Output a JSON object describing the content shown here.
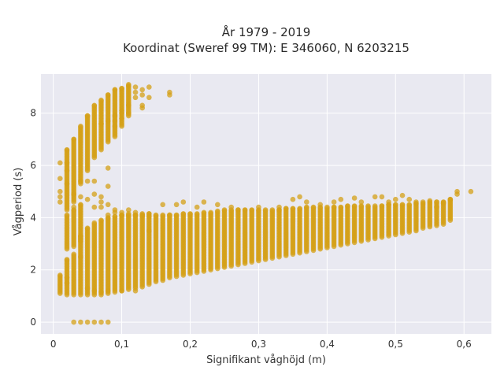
{
  "chart_data": {
    "type": "scatter",
    "title": [
      "År 1979 - 2019",
      "Koordinat (Sweref 99 TM): E 346060, N 6203215"
    ],
    "xlabel": "Signifikant våghöjd (m)",
    "ylabel": "Vågperiod (s)",
    "xlim": [
      -0.018,
      0.64
    ],
    "ylim": [
      -0.45,
      9.5
    ],
    "xticks": [
      0,
      0.1,
      0.2,
      0.3,
      0.4,
      0.5,
      0.6
    ],
    "xtick_labels": [
      "0",
      "0,1",
      "0,2",
      "0,3",
      "0,4",
      "0,5",
      "0,6"
    ],
    "yticks": [
      0,
      2,
      4,
      6,
      8
    ],
    "ytick_labels": [
      "0",
      "2",
      "4",
      "6",
      "8"
    ],
    "grid": true,
    "background_color": "#e9e9f1",
    "marker_color": "#d4a017",
    "x_step": 0.01,
    "bands": [
      {
        "name": "main",
        "x": [
          0.01,
          0.02,
          0.03,
          0.04,
          0.05,
          0.06,
          0.07,
          0.08,
          0.09,
          0.1,
          0.11,
          0.12,
          0.13,
          0.14,
          0.15,
          0.16,
          0.17,
          0.18,
          0.19,
          0.2,
          0.21,
          0.22,
          0.23,
          0.24,
          0.25,
          0.26,
          0.27,
          0.28,
          0.29,
          0.3,
          0.31,
          0.32,
          0.33,
          0.34,
          0.35,
          0.36,
          0.37,
          0.38,
          0.39,
          0.4,
          0.41,
          0.42,
          0.43,
          0.44,
          0.45,
          0.46,
          0.47,
          0.48,
          0.49,
          0.5,
          0.51,
          0.52,
          0.53,
          0.54,
          0.55,
          0.56,
          0.57,
          0.58
        ],
        "ymin": [
          1.1,
          1.05,
          1.05,
          1.05,
          1.05,
          1.05,
          1.05,
          1.1,
          1.15,
          1.2,
          1.25,
          1.3,
          1.35,
          1.45,
          1.55,
          1.6,
          1.7,
          1.75,
          1.8,
          1.85,
          1.9,
          1.95,
          2.0,
          2.05,
          2.1,
          2.15,
          2.2,
          2.25,
          2.3,
          2.35,
          2.4,
          2.45,
          2.5,
          2.55,
          2.6,
          2.65,
          2.7,
          2.75,
          2.8,
          2.85,
          2.9,
          2.95,
          3.0,
          3.05,
          3.1,
          3.15,
          3.2,
          3.25,
          3.3,
          3.35,
          3.4,
          3.45,
          3.5,
          3.6,
          3.65,
          3.7,
          3.75,
          3.9
        ],
        "ymax": [
          1.8,
          2.4,
          2.6,
          3.3,
          3.6,
          3.8,
          3.9,
          4.0,
          4.05,
          4.1,
          4.1,
          4.1,
          4.15,
          4.15,
          4.1,
          4.1,
          4.1,
          4.1,
          4.15,
          4.15,
          4.15,
          4.2,
          4.2,
          4.25,
          4.3,
          4.3,
          4.3,
          4.3,
          4.3,
          4.3,
          4.3,
          4.3,
          4.3,
          4.35,
          4.35,
          4.35,
          4.4,
          4.4,
          4.4,
          4.4,
          4.4,
          4.4,
          4.45,
          4.45,
          4.45,
          4.45,
          4.45,
          4.45,
          4.5,
          4.5,
          4.5,
          4.5,
          4.55,
          4.55,
          4.6,
          4.6,
          4.6,
          4.7
        ]
      },
      {
        "name": "upper",
        "x": [
          0.02,
          0.03,
          0.04,
          0.05,
          0.06,
          0.07,
          0.08,
          0.09,
          0.1,
          0.11
        ],
        "ymin": [
          4.3,
          4.6,
          5.3,
          5.8,
          6.3,
          6.6,
          6.9,
          7.1,
          7.5,
          7.9
        ],
        "ymax": [
          6.6,
          7.0,
          7.5,
          7.9,
          8.3,
          8.5,
          8.7,
          8.9,
          8.95,
          9.05
        ]
      },
      {
        "name": "mid",
        "x": [
          0.02,
          0.03,
          0.04
        ],
        "ymin": [
          2.8,
          2.9,
          3.1
        ],
        "ymax": [
          4.1,
          4.3,
          4.5
        ]
      }
    ],
    "points": {
      "x": [
        0.01,
        0.01,
        0.01,
        0.01,
        0.01,
        0.02,
        0.02,
        0.02,
        0.03,
        0.03,
        0.04,
        0.04,
        0.05,
        0.05,
        0.06,
        0.06,
        0.06,
        0.07,
        0.07,
        0.07,
        0.08,
        0.08,
        0.08,
        0.08,
        0.09,
        0.09,
        0.1,
        0.1,
        0.11,
        0.11,
        0.12,
        0.12,
        0.13,
        0.13,
        0.14,
        0.14,
        0.17,
        0.17,
        0.03,
        0.04,
        0.05,
        0.06,
        0.07,
        0.08,
        0.02,
        0.02,
        0.04,
        0.05,
        0.06,
        0.07,
        0.08,
        0.1,
        0.12,
        0.16,
        0.18,
        0.19,
        0.21,
        0.22,
        0.24,
        0.26,
        0.3,
        0.33,
        0.35,
        0.36,
        0.37,
        0.39,
        0.41,
        0.42,
        0.44,
        0.45,
        0.47,
        0.48,
        0.49,
        0.5,
        0.51,
        0.52,
        0.53,
        0.54,
        0.55,
        0.56,
        0.57,
        0.58,
        0.59,
        0.59,
        0.61,
        0.12,
        0.13,
        0.14,
        0.11,
        0.12,
        0.13,
        0.1,
        0.11,
        0.13,
        0.1,
        0.09,
        0.07,
        0.08,
        0.09,
        0.12,
        0.11,
        0.13,
        0.14,
        0.1,
        0.09
      ],
      "y": [
        6.1,
        5.5,
        5.0,
        4.8,
        4.6,
        6.1,
        5.8,
        5.3,
        4.9,
        4.4,
        4.8,
        5.4,
        5.4,
        4.7,
        4.4,
        4.9,
        5.4,
        4.8,
        4.6,
        4.4,
        5.9,
        5.2,
        4.5,
        4.1,
        4.2,
        4.3,
        4.2,
        4.1,
        4.3,
        4.15,
        4.1,
        4.2,
        4.1,
        4.05,
        4.05,
        3.5,
        8.8,
        8.7,
        0.0,
        0.0,
        0.0,
        0.0,
        0.0,
        0.0,
        1.5,
        1.7,
        2.5,
        1.3,
        1.2,
        1.15,
        1.2,
        1.2,
        1.2,
        4.5,
        4.5,
        4.6,
        4.4,
        4.6,
        4.5,
        4.4,
        4.4,
        4.4,
        4.7,
        4.8,
        4.6,
        4.5,
        4.6,
        4.7,
        4.75,
        4.6,
        4.8,
        4.8,
        4.6,
        4.7,
        4.85,
        4.7,
        4.6,
        4.6,
        4.65,
        4.4,
        4.55,
        4.7,
        5.0,
        4.9,
        5.0,
        8.8,
        8.9,
        9.0,
        9.1,
        9.0,
        8.7,
        8.1,
        8.3,
        8.3,
        8.0,
        7.9,
        7.6,
        7.7,
        7.7,
        8.6,
        8.0,
        8.2,
        8.6,
        7.8,
        7.5
      ]
    }
  }
}
